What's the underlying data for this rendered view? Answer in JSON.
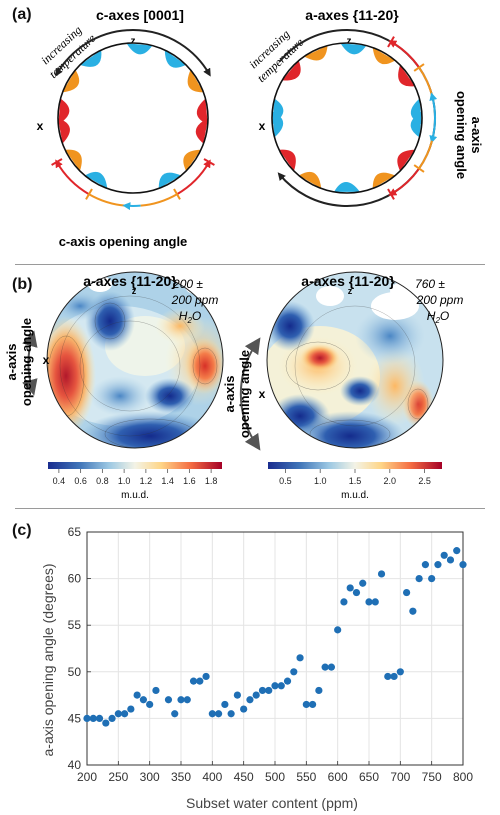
{
  "panel_a": {
    "label": "(a)",
    "left": {
      "title": "c-axes [0001]",
      "temp_line1": "increasing",
      "temp_line2": "temperature",
      "z": "z",
      "x": "x",
      "caption": "c-axis opening angle"
    },
    "right": {
      "title": "a-axes {11-20}",
      "temp_line1": "increasing",
      "temp_line2": "temperature",
      "z": "z",
      "x": "x",
      "side_line1": "a-axis",
      "side_line2": "opening angle"
    },
    "colors": {
      "red": "#e0262b",
      "orange": "#f0941f",
      "blue": "#2ab0e3",
      "dark": "#222222"
    }
  },
  "panel_b": {
    "label": "(b)",
    "left": {
      "title": "a-axes {11-20}",
      "note_line1": "200 ±",
      "note_line2": "200 ppm",
      "note_line3": "H",
      "note_sub": "2",
      "note_line3b": "O",
      "z": "z",
      "x": "x",
      "side_line1": "a-axis",
      "side_line2": "opening angle",
      "colorbar_ticks": [
        "0.4",
        "0.6",
        "0.8",
        "1.0",
        "1.2",
        "1.4",
        "1.6",
        "1.8"
      ],
      "colorbar_label": "m.u.d."
    },
    "right": {
      "title": "a-axes {11-20}",
      "note_line1": "760 ±",
      "note_line2": "200 ppm",
      "note_line3": "H",
      "note_sub": "2",
      "note_line3b": "O",
      "z": "z",
      "x": "x",
      "side_line1": "a-axis",
      "side_line2": "opening angle",
      "colorbar_ticks": [
        "0.5",
        "1.0",
        "1.5",
        "2.0",
        "2.5"
      ],
      "colorbar_label": "m.u.d."
    }
  },
  "panel_c": {
    "label": "(c)"
  },
  "chart_data": {
    "type": "scatter",
    "title": "",
    "xlabel": "Subset water content (ppm)",
    "ylabel": "a-axis opening angle (degrees)",
    "xlim": [
      200,
      800
    ],
    "ylim": [
      40,
      65
    ],
    "xticks": [
      "200",
      "250",
      "300",
      "350",
      "400",
      "450",
      "500",
      "550",
      "600",
      "650",
      "700",
      "750",
      "800"
    ],
    "yticks": [
      "40",
      "45",
      "50",
      "55",
      "60",
      "65"
    ],
    "grid": true,
    "marker_color": "#1f6fb5",
    "series": [
      {
        "x": [
          200,
          210,
          220,
          230,
          240,
          250,
          260,
          270,
          280,
          290,
          300,
          310,
          330,
          340,
          350,
          360,
          370,
          380,
          390,
          400,
          410,
          420,
          430,
          440,
          450,
          460,
          470,
          480,
          490,
          500,
          510,
          520,
          530,
          540,
          550,
          560,
          570,
          580,
          590,
          600,
          610,
          620,
          630,
          640,
          650,
          660,
          670,
          680,
          690,
          700,
          710,
          720,
          730,
          740,
          750,
          760,
          770,
          780,
          790,
          800
        ],
        "y": [
          45,
          45,
          45,
          44.5,
          45,
          45.5,
          45.5,
          46,
          47.5,
          47,
          46.5,
          48,
          47,
          45.5,
          47,
          47,
          49,
          49,
          49.5,
          45.5,
          45.5,
          46.5,
          45.5,
          47.5,
          46,
          47,
          47.5,
          48,
          48,
          48.5,
          48.5,
          49,
          50,
          51.5,
          46.5,
          46.5,
          48,
          50.5,
          50.5,
          54.5,
          57.5,
          59,
          58.5,
          59.5,
          57.5,
          57.5,
          60.5,
          49.5,
          49.5,
          50,
          58.5,
          56.5,
          60,
          61.5,
          60,
          61.5,
          62.5,
          62,
          63,
          61.5
        ]
      }
    ]
  }
}
